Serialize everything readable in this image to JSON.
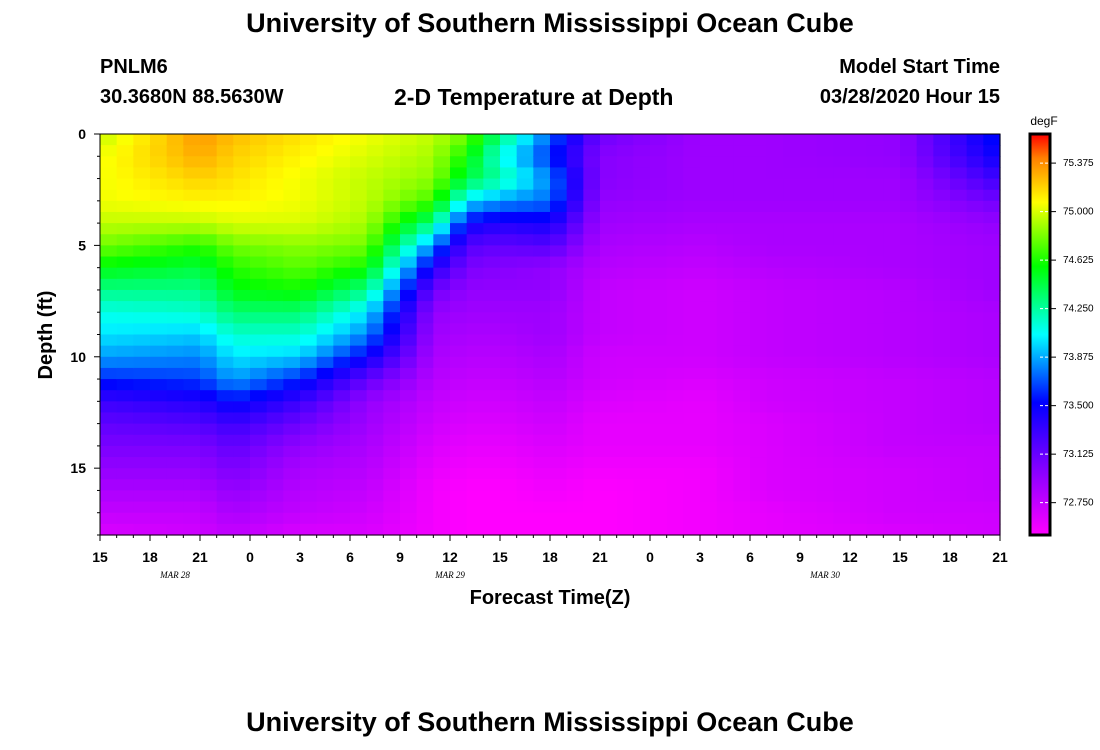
{
  "header": {
    "title": "University of Southern Mississippi Ocean Cube",
    "station": "PNLM6",
    "coordinates": "30.3680N 88.5630W",
    "model_start_label": "Model Start Time",
    "model_start_value": "03/28/2020 Hour 15"
  },
  "footer": {
    "title": "University of Southern Mississippi Ocean Cube"
  },
  "chart_data": {
    "type": "heatmap",
    "title": "2-D Temperature at Depth",
    "xlabel": "Forecast Time(Z)",
    "ylabel": "Depth (ft)",
    "x_ticks": [
      "15",
      "18",
      "21",
      "0",
      "3",
      "6",
      "9",
      "12",
      "15",
      "18",
      "21",
      "0",
      "3",
      "6",
      "9",
      "12",
      "15",
      "18",
      "21"
    ],
    "x_range_hours": [
      0,
      54
    ],
    "tick_step_hours": 3,
    "date_labels": [
      {
        "text": "MAR 28",
        "hour": 4.5
      },
      {
        "text": "MAR 29",
        "hour": 21
      },
      {
        "text": "MAR 30",
        "hour": 43.5
      }
    ],
    "y_ticks": [
      0,
      5,
      10,
      15
    ],
    "ylim": [
      0,
      18
    ],
    "colorbar": {
      "unit": "degF",
      "range": [
        72.5,
        75.6
      ],
      "tick_labels": [
        "75.375",
        "75.000",
        "74.625",
        "74.250",
        "73.875",
        "73.500",
        "73.125",
        "72.750"
      ],
      "tick_values": [
        75.375,
        75.0,
        74.625,
        74.25,
        73.875,
        73.5,
        73.125,
        72.75
      ]
    },
    "grid": {
      "time_hours": [
        0,
        6,
        8,
        12,
        16,
        20,
        22,
        24,
        27,
        30,
        36,
        40,
        48,
        54
      ],
      "depth_ft": [
        0,
        1,
        2,
        3,
        4,
        5,
        6,
        7,
        8,
        9,
        10,
        11,
        12,
        13,
        14,
        15,
        16,
        17,
        18
      ],
      "temperature_degF": [
        [
          74.95,
          75.35,
          75.25,
          75.15,
          75.05,
          74.95,
          74.8,
          74.35,
          73.75,
          73.1,
          72.9,
          72.9,
          72.95,
          73.6
        ],
        [
          75.05,
          75.3,
          75.2,
          75.1,
          75.0,
          74.9,
          74.6,
          74.1,
          73.6,
          73.0,
          72.9,
          72.9,
          72.95,
          73.5
        ],
        [
          75.05,
          75.2,
          75.15,
          75.05,
          74.95,
          74.85,
          74.45,
          74.25,
          73.8,
          73.0,
          72.9,
          72.9,
          72.9,
          73.3
        ],
        [
          75.05,
          75.1,
          75.1,
          75.05,
          74.95,
          74.7,
          74.0,
          73.85,
          73.75,
          72.95,
          72.9,
          72.9,
          72.9,
          73.1
        ],
        [
          74.95,
          74.95,
          75.0,
          75.0,
          74.9,
          74.3,
          73.5,
          73.4,
          73.45,
          72.9,
          72.85,
          72.85,
          72.85,
          72.95
        ],
        [
          74.8,
          74.65,
          74.8,
          74.85,
          74.8,
          73.8,
          73.2,
          73.15,
          73.2,
          72.85,
          72.8,
          72.85,
          72.85,
          72.9
        ],
        [
          74.55,
          74.45,
          74.65,
          74.75,
          74.6,
          73.4,
          73.05,
          73.0,
          72.95,
          72.8,
          72.75,
          72.8,
          72.85,
          72.9
        ],
        [
          74.3,
          74.3,
          74.55,
          74.6,
          74.3,
          73.1,
          72.95,
          72.95,
          72.95,
          72.75,
          72.7,
          72.75,
          72.8,
          72.9
        ],
        [
          74.1,
          74.15,
          74.35,
          74.35,
          74.0,
          72.95,
          72.9,
          72.9,
          72.9,
          72.75,
          72.7,
          72.75,
          72.8,
          72.85
        ],
        [
          74.0,
          73.95,
          74.15,
          74.15,
          73.8,
          72.9,
          72.85,
          72.85,
          72.9,
          72.75,
          72.7,
          72.75,
          72.8,
          72.85
        ],
        [
          73.85,
          73.8,
          74.0,
          73.95,
          73.5,
          72.85,
          72.8,
          72.8,
          72.85,
          72.7,
          72.7,
          72.75,
          72.8,
          72.85
        ],
        [
          73.6,
          73.65,
          73.85,
          73.6,
          73.15,
          72.8,
          72.75,
          72.75,
          72.8,
          72.7,
          72.65,
          72.7,
          72.75,
          72.8
        ],
        [
          73.3,
          73.4,
          73.55,
          73.3,
          72.95,
          72.75,
          72.7,
          72.7,
          72.75,
          72.65,
          72.6,
          72.7,
          72.75,
          72.8
        ],
        [
          73.15,
          73.2,
          73.3,
          73.1,
          72.9,
          72.7,
          72.65,
          72.65,
          72.7,
          72.6,
          72.6,
          72.65,
          72.75,
          72.8
        ],
        [
          73.05,
          73.05,
          73.15,
          72.95,
          72.85,
          72.65,
          72.6,
          72.6,
          72.65,
          72.6,
          72.6,
          72.65,
          72.75,
          72.75
        ],
        [
          72.95,
          72.95,
          73.05,
          72.85,
          72.8,
          72.6,
          72.55,
          72.55,
          72.6,
          72.55,
          72.55,
          72.65,
          72.7,
          72.75
        ],
        [
          72.85,
          72.85,
          72.95,
          72.8,
          72.75,
          72.55,
          72.5,
          72.5,
          72.55,
          72.5,
          72.55,
          72.65,
          72.7,
          72.75
        ],
        [
          72.75,
          72.75,
          72.85,
          72.75,
          72.7,
          72.55,
          72.5,
          72.5,
          72.5,
          72.5,
          72.55,
          72.6,
          72.7,
          72.7
        ],
        [
          72.65,
          72.7,
          72.75,
          72.65,
          72.65,
          72.55,
          72.5,
          72.5,
          72.5,
          72.5,
          72.55,
          72.6,
          72.65,
          72.7
        ]
      ]
    }
  }
}
